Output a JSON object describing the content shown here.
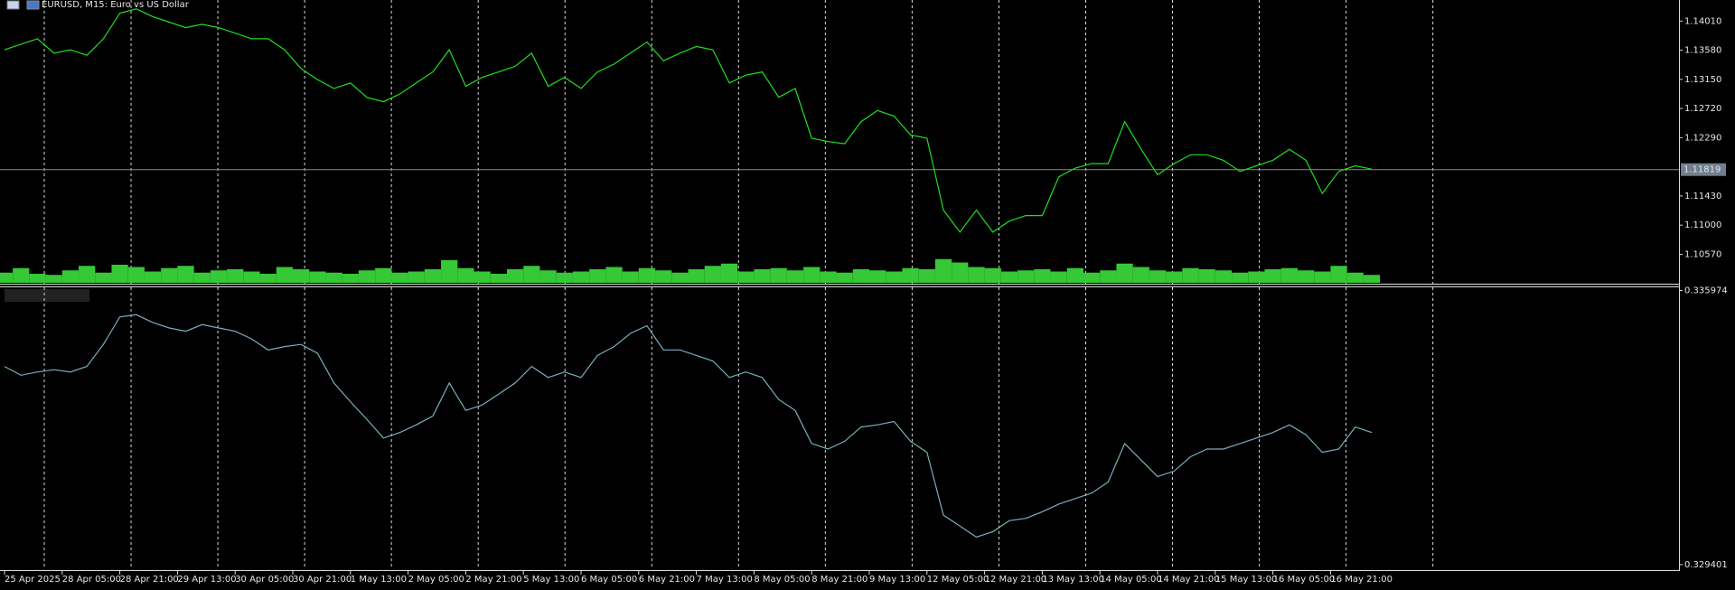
{
  "window_title": "EURUSD, M15:  Euro vs US Dollar",
  "chart_data": [
    {
      "type": "line",
      "series": [
        {
          "color": "#1ee01e",
          "values": [
            1.13586,
            1.13668,
            1.13749,
            1.13537,
            1.13586,
            1.13505,
            1.13749,
            1.14124,
            1.14189,
            1.14075,
            1.13994,
            1.13912,
            1.13961,
            1.13912,
            1.13831,
            1.13749,
            1.13749,
            1.13586,
            1.13309,
            1.13146,
            1.13016,
            1.13097,
            1.12885,
            1.1282,
            1.12934,
            1.13097,
            1.1326,
            1.13586,
            1.13048,
            1.13179,
            1.1326,
            1.13342,
            1.13537,
            1.13048,
            1.13179,
            1.13016,
            1.1326,
            1.13374,
            1.13537,
            1.137,
            1.13423,
            1.13537,
            1.13635,
            1.13586,
            1.13097,
            1.13211,
            1.1326,
            1.12885,
            1.13016,
            1.12282,
            1.12233,
            1.12201,
            1.12527,
            1.1269,
            1.12608,
            1.12331,
            1.12282,
            1.11223,
            1.10897,
            1.11223,
            1.10897,
            1.1106,
            1.11141,
            1.11141,
            1.11712,
            1.11842,
            1.11907,
            1.11907,
            1.12527,
            1.12119,
            1.11744,
            1.11907,
            1.12038,
            1.12038,
            1.11956,
            1.11793,
            1.11875,
            1.11956,
            1.12119,
            1.11956,
            1.11467,
            1.11793,
            1.11875,
            1.11826
          ]
        }
      ],
      "volume": {
        "color": "#36c836",
        "lim": [
          0,
          4000
        ],
        "values": [
          900,
          1300,
          800,
          700,
          1100,
          1500,
          900,
          1600,
          1400,
          1000,
          1300,
          1500,
          900,
          1100,
          1200,
          1000,
          800,
          1400,
          1200,
          1000,
          900,
          800,
          1100,
          1300,
          900,
          1000,
          1200,
          2000,
          1300,
          1000,
          800,
          1200,
          1500,
          1100,
          900,
          1000,
          1200,
          1400,
          1000,
          1300,
          1100,
          900,
          1200,
          1500,
          1700,
          1000,
          1200,
          1300,
          1100,
          1400,
          1000,
          900,
          1200,
          1100,
          1000,
          1300,
          1200,
          2100,
          1800,
          1400,
          1300,
          1000,
          1100,
          1200,
          1000,
          1300,
          900,
          1100,
          1700,
          1400,
          1100,
          1000,
          1300,
          1200,
          1100,
          900,
          1000,
          1200,
          1300,
          1100,
          1000,
          1500,
          900,
          700
        ]
      },
      "ylim": [
        1.1015,
        1.1432
      ],
      "yticks": [
        {
          "value": 1.1401,
          "label": "1.14010"
        },
        {
          "value": 1.1358,
          "label": "1.13580"
        },
        {
          "value": 1.1315,
          "label": "1.13150"
        },
        {
          "value": 1.1272,
          "label": "1.12720"
        },
        {
          "value": 1.1229,
          "label": "1.12290"
        },
        {
          "value": 1.1143,
          "label": "1.11430"
        },
        {
          "value": 1.11,
          "label": "1.11000"
        },
        {
          "value": 1.1057,
          "label": "1.10570"
        }
      ],
      "current_price": 1.11819
    },
    {
      "type": "line",
      "series": [
        {
          "color": "#7aaebd",
          "values": [
            0.334152,
            0.333941,
            0.33402,
            0.334073,
            0.33402,
            0.334152,
            0.33468,
            0.33534,
            0.335393,
            0.335208,
            0.335076,
            0.334997,
            0.335156,
            0.335076,
            0.334997,
            0.334812,
            0.334548,
            0.334628,
            0.33468,
            0.334469,
            0.333756,
            0.333308,
            0.332885,
            0.332436,
            0.332568,
            0.332753,
            0.332964,
            0.333756,
            0.333096,
            0.333228,
            0.333492,
            0.333756,
            0.334152,
            0.333888,
            0.33402,
            0.333888,
            0.334416,
            0.334628,
            0.334944,
            0.335129,
            0.334548,
            0.334548,
            0.334416,
            0.334284,
            0.333888,
            0.33402,
            0.333888,
            0.33336,
            0.333096,
            0.332304,
            0.332172,
            0.332357,
            0.3327,
            0.332753,
            0.332832,
            0.332357,
            0.332093,
            0.330588,
            0.330324,
            0.33006,
            0.330192,
            0.330456,
            0.330509,
            0.330668,
            0.330852,
            0.330984,
            0.331116,
            0.33138,
            0.332304,
            0.331908,
            0.331512,
            0.331644,
            0.331988,
            0.332172,
            0.332172,
            0.332304,
            0.332436,
            0.332568,
            0.332753,
            0.332516,
            0.332093,
            0.332172,
            0.3327,
            0.332568
          ]
        }
      ],
      "ylim": [
        0.32929,
        0.33605
      ],
      "yticks": [
        0.335974,
        0.329401
      ]
    }
  ],
  "time_axis": {
    "labels": [
      "25 Apr 2025",
      "28 Apr 05:00",
      "28 Apr 21:00",
      "29 Apr 13:00",
      "30 Apr 05:00",
      "30 Apr 21:00",
      "1 May 13:00",
      "2 May 05:00",
      "2 May 21:00",
      "5 May 13:00",
      "6 May 05:00",
      "6 May 21:00",
      "7 May 13:00",
      "8 May 05:00",
      "8 May 21:00",
      "9 May 13:00",
      "12 May 05:00",
      "12 May 21:00",
      "13 May 13:00",
      "14 May 05:00",
      "14 May 21:00",
      "15 May 13:00",
      "16 May 05:00",
      "16 May 21:00"
    ]
  }
}
